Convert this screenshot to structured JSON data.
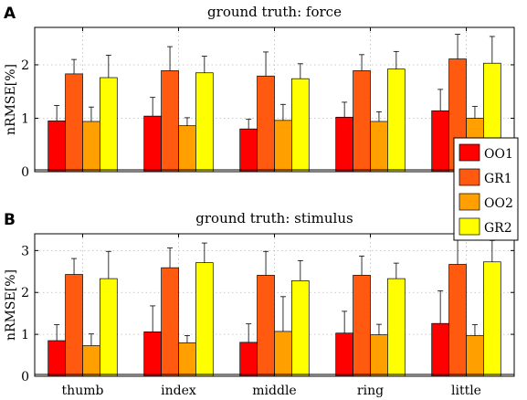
{
  "panels": [
    {
      "letter": "A"
    },
    {
      "letter": "B"
    }
  ],
  "chart_data": [
    {
      "type": "bar",
      "title": "ground truth: force",
      "xlabel": "",
      "ylabel": "nRMSE[%]",
      "categories": [
        "thumb",
        "index",
        "middle",
        "ring",
        "little"
      ],
      "ylim": [
        0,
        2.7
      ],
      "yticks": [
        0,
        1,
        2
      ],
      "grid": true,
      "legend": "right",
      "series": [
        {
          "name": "OO1",
          "color": "#ff0000",
          "values": [
            0.95,
            1.04,
            0.8,
            1.02,
            1.14
          ],
          "errors": [
            0.29,
            0.35,
            0.18,
            0.28,
            0.4
          ]
        },
        {
          "name": "GR1",
          "color": "#ff5a10",
          "values": [
            1.83,
            1.89,
            1.79,
            1.89,
            2.11
          ],
          "errors": [
            0.27,
            0.45,
            0.45,
            0.3,
            0.46
          ]
        },
        {
          "name": "OO2",
          "color": "#ffa000",
          "values": [
            0.94,
            0.86,
            0.96,
            0.94,
            1.0
          ],
          "errors": [
            0.27,
            0.15,
            0.3,
            0.18,
            0.22
          ]
        },
        {
          "name": "GR2",
          "color": "#ffff00",
          "values": [
            1.76,
            1.85,
            1.74,
            1.92,
            2.03
          ],
          "errors": [
            0.42,
            0.31,
            0.28,
            0.33,
            0.5
          ]
        }
      ]
    },
    {
      "type": "bar",
      "title": "ground truth: stimulus",
      "xlabel": "",
      "ylabel": "nRMSE[%]",
      "categories": [
        "thumb",
        "index",
        "middle",
        "ring",
        "little"
      ],
      "ylim": [
        0,
        3.4
      ],
      "yticks": [
        0,
        1,
        2,
        3
      ],
      "grid": true,
      "series": [
        {
          "name": "OO1",
          "color": "#ff0000",
          "values": [
            0.85,
            1.06,
            0.81,
            1.03,
            1.26
          ],
          "errors": [
            0.38,
            0.62,
            0.44,
            0.52,
            0.78
          ]
        },
        {
          "name": "GR1",
          "color": "#ff5a10",
          "values": [
            2.43,
            2.59,
            2.41,
            2.41,
            2.67
          ],
          "errors": [
            0.38,
            0.47,
            0.57,
            0.46,
            0.6
          ]
        },
        {
          "name": "OO2",
          "color": "#ffa000",
          "values": [
            0.73,
            0.8,
            1.07,
            0.99,
            0.97
          ],
          "errors": [
            0.28,
            0.17,
            0.83,
            0.25,
            0.26
          ]
        },
        {
          "name": "GR2",
          "color": "#ffff00",
          "values": [
            2.33,
            2.71,
            2.28,
            2.33,
            2.73
          ],
          "errors": [
            0.65,
            0.47,
            0.48,
            0.37,
            0.51
          ]
        }
      ]
    }
  ]
}
